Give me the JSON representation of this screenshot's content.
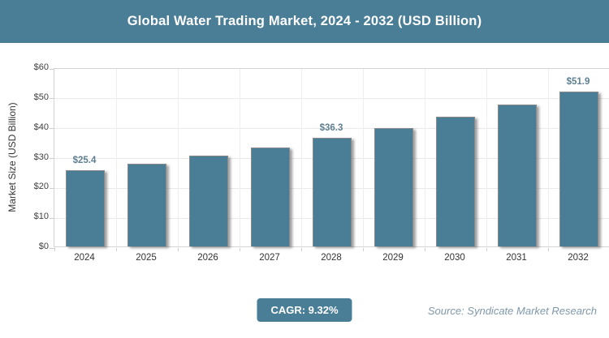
{
  "banner": {
    "title": "Global Water Trading Market, 2024 - 2032 (USD Billion)"
  },
  "chart_data": {
    "type": "bar",
    "title": "Global Water Trading Market, 2024 - 2032 (USD Billion)",
    "xlabel": "",
    "ylabel": "Market Size (USD Billion)",
    "ylim": [
      0,
      60
    ],
    "y_ticks": [
      "$0",
      "$10",
      "$20",
      "$30",
      "$40",
      "$50",
      "$60"
    ],
    "grid": true,
    "legend": "none",
    "categories": [
      "2024",
      "2025",
      "2026",
      "2027",
      "2028",
      "2029",
      "2030",
      "2031",
      "2032"
    ],
    "values": [
      25.4,
      27.8,
      30.4,
      33.2,
      36.3,
      39.7,
      43.4,
      47.4,
      51.9
    ],
    "data_labels": {
      "2024": "$25.4",
      "2028": "$36.3",
      "2032": "$51.9"
    },
    "bar_color": "#4A7E97"
  },
  "footer": {
    "cagr_label": "CAGR: 9.32%",
    "source": "Source: Syndicate Market Research"
  },
  "colors": {
    "banner_bg": "#4A7E97",
    "bar_fill": "#4A7E97",
    "bar_border": "#8a8a8a",
    "data_label": "#5E7F91",
    "axis_text": "#3f3f3f",
    "gridline": "#e9e9e9",
    "source_text": "#7F98AB",
    "badge_bg": "#4A7E97"
  }
}
